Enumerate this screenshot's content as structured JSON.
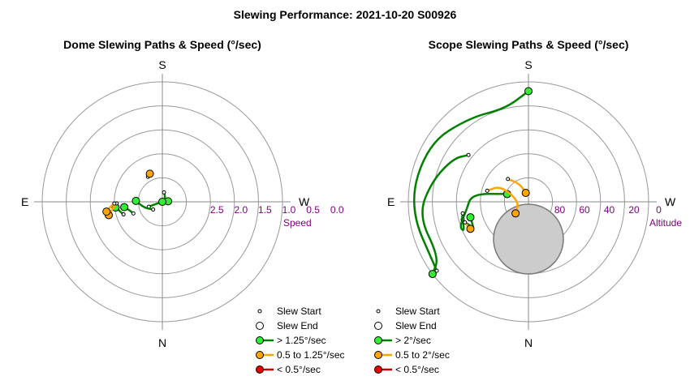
{
  "title": "Slewing Performance: 2021-10-20 S00926",
  "colors": {
    "fast": "#008000",
    "fast_fill": "#33ee33",
    "medium": "#ffa500",
    "medium_fill": "#ffa500",
    "slow": "#cc0000",
    "slow_fill": "#ee0000",
    "ring": "#999999",
    "axis": "#888888",
    "tick": "#800080",
    "moon": "#cccccc"
  },
  "chart_data": [
    {
      "type": "polar-scatter",
      "title": "Dome Slewing Paths & Speed (°/sec)",
      "directions": {
        "top": "S",
        "bottom": "N",
        "left": "E",
        "right": "W"
      },
      "radial_label": "Speed",
      "radial_ticks": [
        "2.5",
        "2.0",
        "1.5",
        "1.0",
        "0.5",
        "0.0"
      ],
      "grid": true,
      "legend": [
        {
          "key": "start",
          "label": "Slew Start"
        },
        {
          "key": "end",
          "label": "Slew End"
        },
        {
          "key": "fast",
          "label": "> 1.25°/sec"
        },
        {
          "key": "medium",
          "label": "0.5 to 1.25°/sec"
        },
        {
          "key": "slow",
          "label": "< 0.5°/sec"
        }
      ],
      "slews": [
        {
          "speed": "fast",
          "path": [
            [
              110,
              2.2
            ],
            [
              103,
              2.45
            ],
            [
              95,
              2.62
            ]
          ]
        },
        {
          "speed": "fast",
          "path": [
            [
              350,
              2.3
            ],
            [
              320,
              2.4
            ],
            [
              295,
              2.5
            ]
          ]
        },
        {
          "speed": "fast",
          "path": [
            [
              130,
              2.25
            ],
            [
              108,
              2.1
            ],
            [
              88,
              1.95
            ]
          ]
        },
        {
          "speed": "fast",
          "path": [
            [
              112,
              1.85
            ],
            [
              105,
              1.8
            ],
            [
              98,
              1.7
            ]
          ]
        },
        {
          "speed": "fast",
          "path": [
            [
              108,
              1.65
            ],
            [
              103,
              1.6
            ],
            [
              97,
              1.52
            ]
          ]
        },
        {
          "speed": "medium",
          "path": [
            [
              92,
              1.55
            ],
            [
              98,
              1.45
            ],
            [
              104,
              1.35
            ]
          ]
        },
        {
          "speed": "medium",
          "path": [
            [
              92,
              1.5
            ],
            [
              96,
              1.4
            ],
            [
              100,
              1.32
            ]
          ]
        },
        {
          "speed": "medium",
          "path": [
            [
              30,
              1.9
            ],
            [
              27,
              1.88
            ],
            [
              24,
              1.86
            ]
          ]
        }
      ]
    },
    {
      "type": "polar-scatter",
      "title": "Scope Slewing Paths & Speed (°/sec)",
      "directions": {
        "top": "S",
        "bottom": "N",
        "left": "E",
        "right": "W"
      },
      "radial_label": "Altitude",
      "radial_ticks": [
        "80",
        "60",
        "40",
        "20",
        "0"
      ],
      "grid": true,
      "moon": {
        "azimuth": 180,
        "altitude": 62,
        "radius_deg": 9
      },
      "legend": [
        {
          "key": "start",
          "label": "Slew Start"
        },
        {
          "key": "end",
          "label": "Slew End"
        },
        {
          "key": "fast",
          "label": "> 2°/sec"
        },
        {
          "key": "medium",
          "label": "0.5 to 2°/sec"
        },
        {
          "key": "slow",
          "label": "< 0.5°/sec"
        }
      ],
      "slews": [
        {
          "speed": "fast",
          "path": [
            [
              127,
              4
            ],
            [
              92,
              0
            ],
            [
              60,
              3
            ],
            [
              35,
              13
            ],
            [
              14,
              18
            ],
            [
              0,
              7
            ]
          ]
        },
        {
          "speed": "fast",
          "path": [
            [
              52,
              33
            ],
            [
              60,
              25
            ],
            [
              78,
              16
            ],
            [
              97,
              7
            ],
            [
              122,
              11
            ],
            [
              127,
              0
            ]
          ]
        },
        {
          "speed": "fast",
          "path": [
            [
              105,
              39
            ],
            [
              115,
              37
            ],
            [
              110,
              35
            ],
            [
              98,
              43
            ],
            [
              82,
              47
            ],
            [
              70,
              73
            ]
          ]
        },
        {
          "speed": "fast",
          "path": [
            [
              100,
              40
            ],
            [
              106,
              38
            ],
            [
              112,
              43
            ],
            [
              118,
              44
            ],
            [
              105,
              45
            ]
          ]
        },
        {
          "speed": "medium",
          "path": [
            [
              75,
              58
            ],
            [
              60,
              66
            ],
            [
              88,
              83
            ],
            [
              132,
              77
            ]
          ]
        },
        {
          "speed": "medium",
          "path": [
            [
              42,
              67
            ],
            [
              26,
              75
            ],
            [
              17,
              83
            ]
          ]
        },
        {
          "speed": "medium",
          "path": [
            [
              108,
              40
            ],
            [
              112,
              41
            ],
            [
              115,
              42
            ]
          ]
        }
      ]
    }
  ]
}
